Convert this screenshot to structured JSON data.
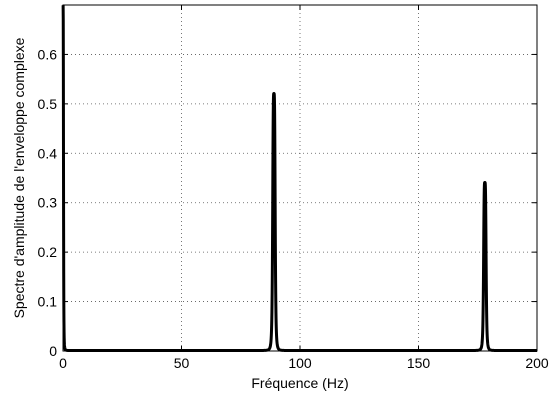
{
  "chart_data": {
    "type": "line",
    "title": "",
    "xlabel": "Fréquence (Hz)",
    "ylabel": "Spectre d'amplitude de l'enveloppe complexe",
    "xlim": [
      0,
      200
    ],
    "ylim": [
      0,
      0.7
    ],
    "xticks": [
      0,
      50,
      100,
      150,
      200
    ],
    "xtick_labels": [
      "0",
      "50",
      "100",
      "150",
      "200"
    ],
    "yticks": [
      0,
      0.1,
      0.2,
      0.3,
      0.4,
      0.5,
      0.6
    ],
    "ytick_labels": [
      "0",
      "0.1",
      "0.2",
      "0.3",
      "0.4",
      "0.5",
      "0.6"
    ],
    "grid": true,
    "grid_style": "dotted",
    "legend": "none",
    "line_color": "#000000",
    "series": [
      {
        "peaks": [
          {
            "x": 0,
            "y": 0.7
          },
          {
            "x": 89,
            "y": 0.52
          },
          {
            "x": 178,
            "y": 0.34
          }
        ]
      }
    ]
  }
}
